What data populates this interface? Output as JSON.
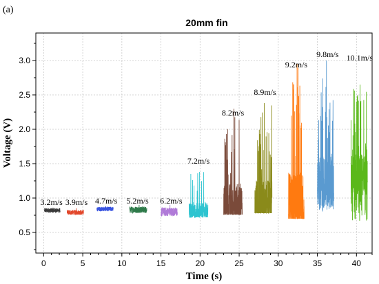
{
  "panel_label": "(a)",
  "chart_data": {
    "type": "line",
    "title": "20mm fin",
    "xlabel": "Time (s)",
    "ylabel": "Voltage (V)",
    "xlim": [
      -1,
      42
    ],
    "ylim": [
      0.2,
      3.4
    ],
    "xticks": [
      "0",
      "5",
      "10",
      "15",
      "20",
      "25",
      "30",
      "35",
      "40"
    ],
    "yticks": [
      "0.5",
      "1.0",
      "1.5",
      "2.0",
      "2.5",
      "3.0"
    ],
    "grid": true,
    "series": [
      {
        "name": "3.2m/s",
        "color": "#3a3a3a",
        "t_start": 0.1,
        "t_end": 2.1,
        "base": 0.82,
        "min": 0.78,
        "max": 0.86,
        "label_x": 1.0,
        "label_y": 0.9
      },
      {
        "name": "3.9m/s",
        "color": "#e2482c",
        "t_start": 3.0,
        "t_end": 5.1,
        "base": 0.79,
        "min": 0.76,
        "max": 0.85,
        "label_x": 4.2,
        "label_y": 0.9
      },
      {
        "name": "4.7m/s",
        "color": "#3a55e0",
        "t_start": 6.8,
        "t_end": 8.9,
        "base": 0.84,
        "min": 0.8,
        "max": 0.88,
        "label_x": 8.0,
        "label_y": 0.92
      },
      {
        "name": "5.2m/s",
        "color": "#2e7a4a",
        "t_start": 11.0,
        "t_end": 13.2,
        "base": 0.83,
        "min": 0.78,
        "max": 0.9,
        "label_x": 12.0,
        "label_y": 0.92
      },
      {
        "name": "6.2m/s",
        "color": "#b07ad8",
        "t_start": 15.0,
        "t_end": 17.1,
        "base": 0.8,
        "min": 0.74,
        "max": 0.9,
        "label_x": 16.3,
        "label_y": 0.92
      },
      {
        "name": "7.2m/s",
        "color": "#2ec4d0",
        "t_start": 18.6,
        "t_end": 21.0,
        "base": 0.78,
        "min": 0.72,
        "max": 1.38,
        "label_x": 19.8,
        "label_y": 1.5
      },
      {
        "name": "8.2m/s",
        "color": "#7a4a3a",
        "t_start": 23.0,
        "t_end": 25.4,
        "base": 0.86,
        "min": 0.76,
        "max": 2.3,
        "label_x": 24.2,
        "label_y": 2.2
      },
      {
        "name": "8.9m/s",
        "color": "#8a8a1a",
        "t_start": 27.0,
        "t_end": 29.2,
        "base": 0.9,
        "min": 0.78,
        "max": 2.38,
        "label_x": 28.3,
        "label_y": 2.5
      },
      {
        "name": "9.2m/s",
        "color": "#ff7a10",
        "t_start": 31.3,
        "t_end": 33.3,
        "base": 0.85,
        "min": 0.7,
        "max": 2.95,
        "label_x": 32.3,
        "label_y": 2.9
      },
      {
        "name": "9.8m/s",
        "color": "#5a9ad0",
        "t_start": 35.0,
        "t_end": 37.1,
        "base": 1.2,
        "min": 0.8,
        "max": 3.0,
        "label_x": 36.3,
        "label_y": 3.05
      },
      {
        "name": "10.1m/s",
        "color": "#5ab81a",
        "t_start": 39.3,
        "t_end": 41.4,
        "base": 1.3,
        "min": 0.65,
        "max": 2.65,
        "label_x": 40.4,
        "label_y": 3.0
      }
    ]
  }
}
